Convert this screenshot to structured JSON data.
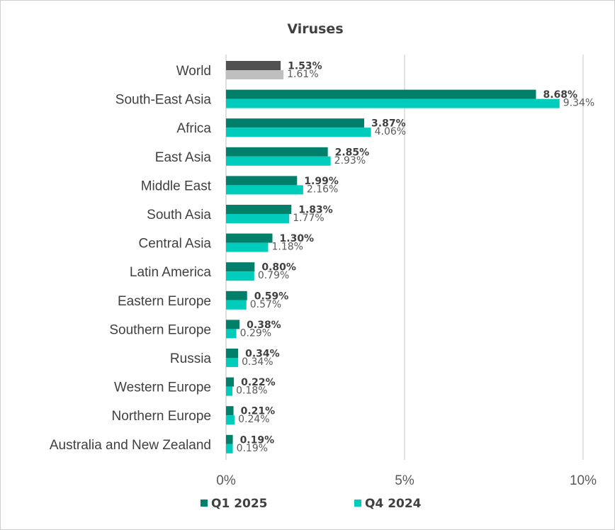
{
  "chart_data": {
    "type": "bar",
    "orientation": "horizontal",
    "title": "Viruses",
    "categories": [
      "World",
      "South-East Asia",
      "Africa",
      "East Asia",
      "Middle East",
      "South Asia",
      "Central Asia",
      "Latin America",
      "Eastern Europe",
      "Southern Europe",
      "Russia",
      "Western Europe",
      "Northern Europe",
      "Australia and New Zealand"
    ],
    "series": [
      {
        "name": "Q1 2025",
        "color": "#00806b",
        "world_color": "#505050",
        "values": [
          1.53,
          8.68,
          3.87,
          2.85,
          1.99,
          1.83,
          1.3,
          0.8,
          0.59,
          0.38,
          0.34,
          0.22,
          0.21,
          0.19
        ],
        "labels": [
          "1.53%",
          "8.68%",
          "3.87%",
          "2.85%",
          "1.99%",
          "1.83%",
          "1.30%",
          "0.80%",
          "0.59%",
          "0.38%",
          "0.34%",
          "0.22%",
          "0.21%",
          "0.19%"
        ]
      },
      {
        "name": "Q4 2024",
        "color": "#00ccbb",
        "world_color": "#bfbfbf",
        "values": [
          1.61,
          9.34,
          4.06,
          2.93,
          2.16,
          1.77,
          1.18,
          0.79,
          0.57,
          0.29,
          0.34,
          0.18,
          0.24,
          0.19
        ],
        "labels": [
          "1.61%",
          "9.34%",
          "4.06%",
          "2.93%",
          "2.16%",
          "1.77%",
          "1.18%",
          "0.79%",
          "0.57%",
          "0.29%",
          "0.34%",
          "0.18%",
          "0.24%",
          "0.19%"
        ]
      }
    ],
    "xlim": [
      0,
      10
    ],
    "xticks": [
      0,
      5,
      10
    ],
    "xtick_labels": [
      "0%",
      "5%",
      "10%"
    ],
    "grid": true,
    "legend_position": "bottom"
  }
}
